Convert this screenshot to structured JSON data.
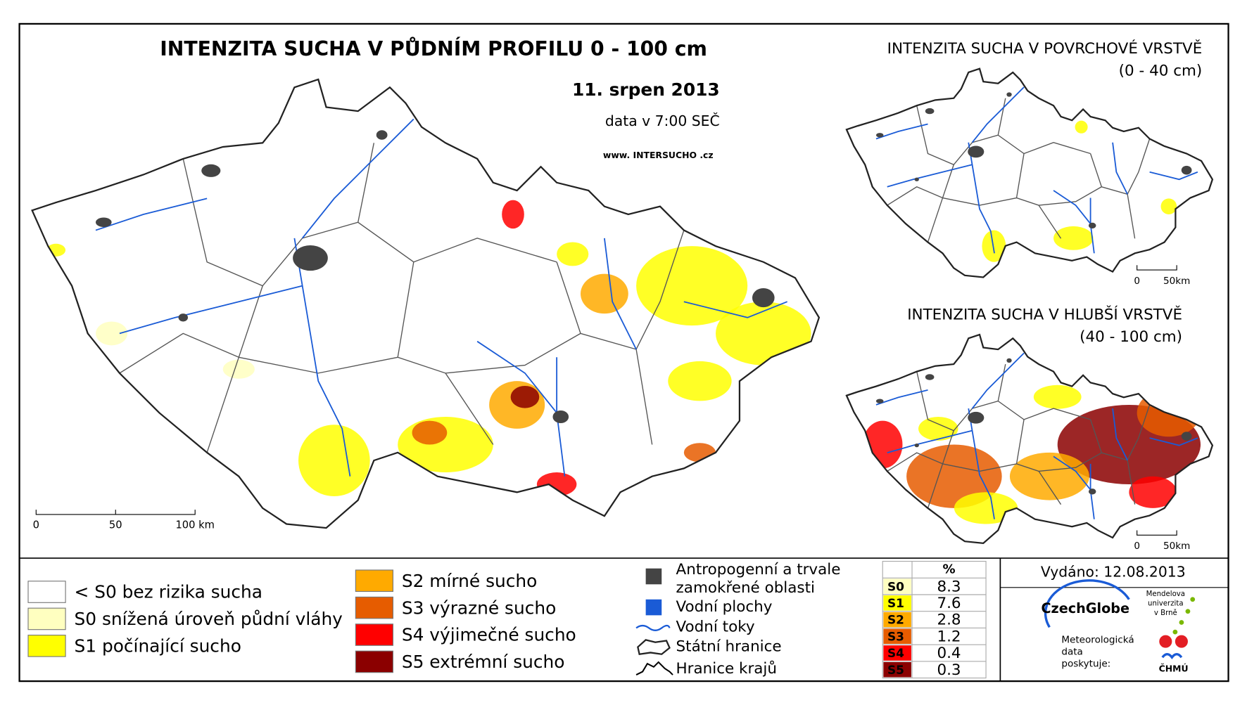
{
  "main_map": {
    "title": "INTENZITA SUCHA V PŮDNÍM PROFILU 0 - 100 cm",
    "date": "11. srpen 2013",
    "data_time": "data v 7:00 SEČ",
    "website": "www. INTERSUCHO .cz",
    "scale_labels": [
      "0",
      "50",
      "100 km"
    ]
  },
  "inset_surface": {
    "title": "INTENZITA SUCHA V POVRCHOVÉ VRSTVĚ",
    "depth": "(0 - 40 cm)",
    "scale_labels": [
      "0",
      "50km"
    ]
  },
  "inset_deep": {
    "title": "INTENZITA SUCHA V HLUBŠÍ VRSTVĚ",
    "depth": "(40 - 100 cm)",
    "scale_labels": [
      "0",
      "50km"
    ]
  },
  "legend_classes": [
    {
      "label": "< S0 bez rizika sucha",
      "color": "#ffffff"
    },
    {
      "label": "S0 snížená úroveň půdní vláhy",
      "color": "#ffffc0"
    },
    {
      "label": "S1 počínající sucho",
      "color": "#ffff00"
    },
    {
      "label": "S2 mírné sucho",
      "color": "#ffaa00"
    },
    {
      "label": "S3 výrazné sucho",
      "color": "#e65c00"
    },
    {
      "label": "S4 výjimečné sucho",
      "color": "#ff0000"
    },
    {
      "label": "S5 extrémní sucho",
      "color": "#8b0000"
    }
  ],
  "legend_features": {
    "anthropogenic": [
      "Antropogenní a trvale",
      "zamokřené oblasti"
    ],
    "water_bodies": "Vodní plochy",
    "rivers": "Vodní toky",
    "state_border": "Státní hranice",
    "region_border": "Hranice krajů"
  },
  "stats_table": {
    "header": "%",
    "rows": [
      [
        "S0",
        8.3
      ],
      [
        "S1",
        7.6
      ],
      [
        "S2",
        2.8
      ],
      [
        "S3",
        1.2
      ],
      [
        "S4",
        0.4
      ],
      [
        "S5",
        0.3
      ]
    ]
  },
  "issued": "Vydáno: 12.08.2013",
  "logos": {
    "czechglobe": "CzechGlobe",
    "mendel": [
      "Mendelova",
      "univerzita",
      "v Brně"
    ],
    "provider": [
      "Meteorologická",
      "data",
      "poskytuje:"
    ],
    "chmu": "ČHMÚ"
  }
}
